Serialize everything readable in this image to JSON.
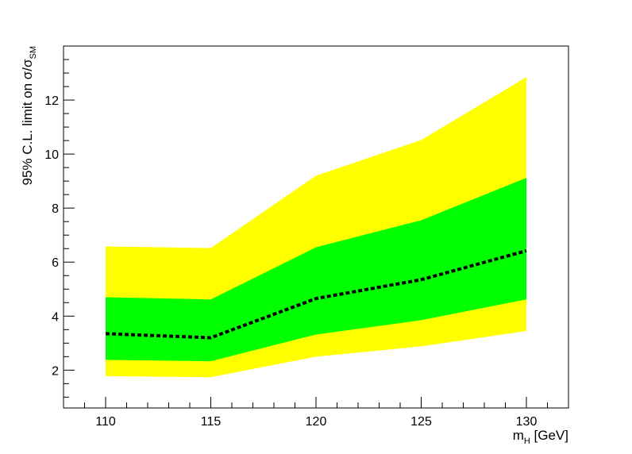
{
  "chart_data": {
    "type": "area",
    "x": [
      110,
      115,
      120,
      125,
      130
    ],
    "xlim": [
      108,
      132
    ],
    "ylim": [
      0.6,
      14
    ],
    "xticks": [
      110,
      115,
      120,
      125,
      130
    ],
    "yticks": [
      2,
      4,
      6,
      8,
      10,
      12
    ],
    "xminor_step": 1,
    "yminor_step": 0.5,
    "xlabel_main": "m",
    "xlabel_sub": "H",
    "xlabel_unit": " [GeV]",
    "ylabel_main": "95% C.L. limit on σ/σ",
    "ylabel_sub": "SM",
    "bands": [
      {
        "name": "",
        "color": "#ffff00",
        "lower": [
          1.78,
          1.74,
          2.5,
          2.88,
          3.45
        ],
        "upper": [
          6.58,
          6.52,
          9.2,
          10.52,
          12.85
        ]
      },
      {
        "name": "",
        "color": "#00ff00",
        "lower": [
          2.38,
          2.33,
          3.32,
          3.85,
          4.62
        ],
        "upper": [
          4.7,
          4.62,
          6.55,
          7.55,
          9.12
        ]
      }
    ],
    "series": [
      {
        "name": "",
        "style": "dashed",
        "color": "#000000",
        "values": [
          3.35,
          3.2,
          4.65,
          5.35,
          6.42
        ]
      }
    ],
    "grid": false,
    "legend": "none"
  }
}
